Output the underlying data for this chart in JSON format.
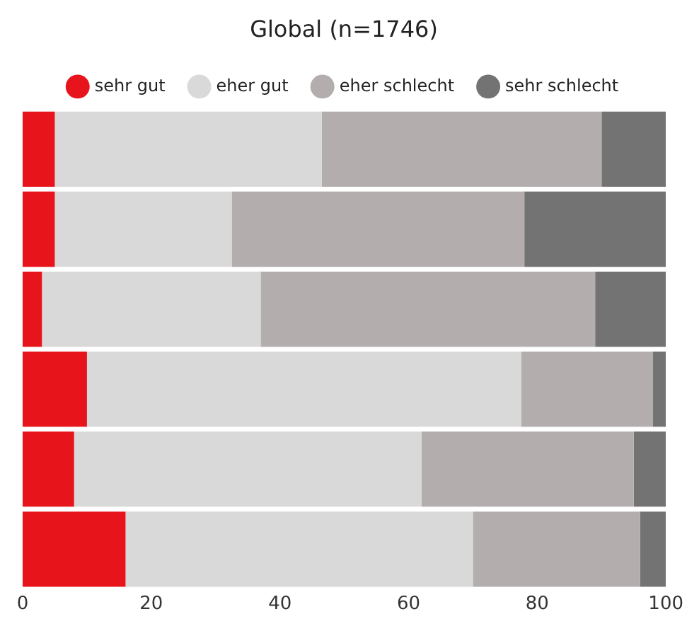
{
  "chart_data": {
    "type": "bar",
    "orientation": "horizontal",
    "stacked": true,
    "title": "Global (n=1746)",
    "categories": [
      null,
      null,
      null,
      null,
      null,
      null
    ],
    "series": [
      {
        "name": "sehr gut",
        "color": "#e8141b",
        "values": [
          5,
          5,
          3,
          10,
          8,
          16
        ]
      },
      {
        "name": "eher gut",
        "color": "#d9d9d9",
        "values": [
          41.5,
          27.5,
          34,
          67.5,
          54,
          54
        ]
      },
      {
        "name": "eher schlecht",
        "color": "#b3adad",
        "values": [
          43.5,
          45.5,
          52,
          20.5,
          33,
          26
        ]
      },
      {
        "name": "sehr schlecht",
        "color": "#737373",
        "values": [
          10,
          22,
          11,
          2,
          5,
          4
        ]
      }
    ],
    "xlim": [
      0,
      100
    ],
    "xticks": [
      0,
      20,
      40,
      60,
      80,
      100
    ],
    "legend": "top",
    "tick_labels": "x",
    "grid": false
  }
}
